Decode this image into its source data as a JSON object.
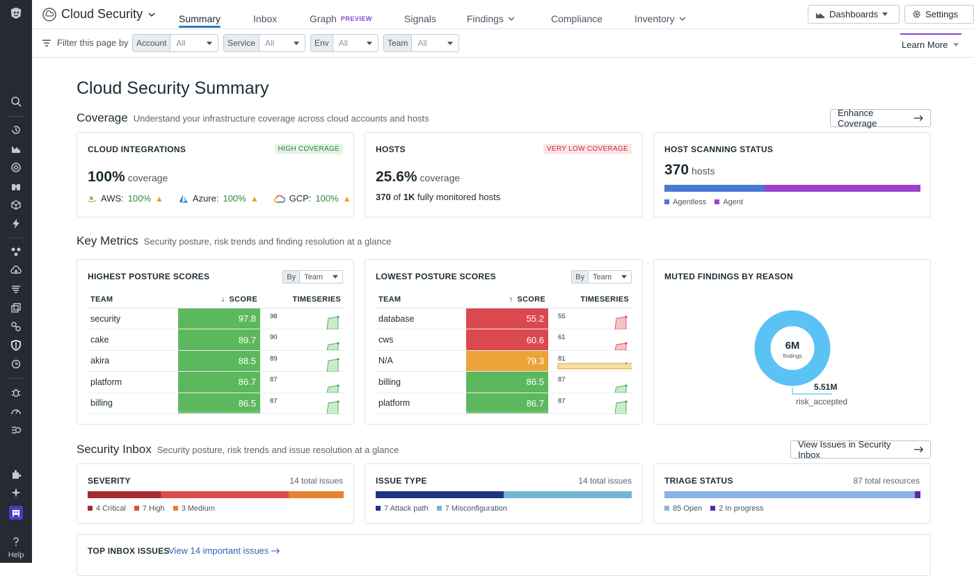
{
  "app": {
    "title": "Cloud Security"
  },
  "nav": {
    "tabs": [
      {
        "label": "Summary"
      },
      {
        "label": "Inbox"
      },
      {
        "label": "Graph",
        "badge": "PREVIEW"
      },
      {
        "label": "Signals"
      },
      {
        "label": "Findings"
      },
      {
        "label": "Compliance"
      },
      {
        "label": "Inventory"
      }
    ],
    "dashboards": "Dashboards",
    "settings": "Settings",
    "help": "Help"
  },
  "filters": {
    "label": "Filter this page by",
    "items": [
      {
        "key": "Account",
        "value": "All"
      },
      {
        "key": "Service",
        "value": "All"
      },
      {
        "key": "Env",
        "value": "All"
      },
      {
        "key": "Team",
        "value": "All"
      }
    ],
    "learn_more": "Learn More"
  },
  "page": {
    "title": "Cloud Security Summary"
  },
  "coverage": {
    "title": "Coverage",
    "subtitle": "Understand your infrastructure coverage across cloud accounts and hosts",
    "button": "Enhance Coverage",
    "integrations": {
      "title": "CLOUD INTEGRATIONS",
      "badge": "HIGH COVERAGE",
      "value": "100%",
      "unit": "coverage",
      "providers": [
        {
          "name": "AWS:",
          "pct": "100%"
        },
        {
          "name": "Azure:",
          "pct": "100%"
        },
        {
          "name": "GCP:",
          "pct": "100%"
        }
      ]
    },
    "hosts": {
      "title": "HOSTS",
      "badge": "VERY LOW COVERAGE",
      "value": "25.6%",
      "unit": "coverage",
      "count": "370",
      "of": "of",
      "total": "1K",
      "desc": "fully monitored hosts"
    },
    "scanning": {
      "title": "HOST SCANNING STATUS",
      "value": "370",
      "unit": "hosts",
      "agentless_fraction": 0.39,
      "legend": [
        "Agentless",
        "Agent"
      ],
      "colors": [
        "#4a79d0",
        "#9a40c9"
      ]
    }
  },
  "metrics": {
    "title": "Key Metrics",
    "subtitle": "Security posture, risk trends and finding resolution at a glance",
    "highest": {
      "title": "HIGHEST POSTURE SCORES",
      "by": "By",
      "group": "Team",
      "cols": [
        "TEAM",
        "SCORE",
        "TIMESERIES"
      ],
      "rows": [
        {
          "team": "security",
          "score": "97.8",
          "ts": "98"
        },
        {
          "team": "cake",
          "score": "89.7",
          "ts": "90"
        },
        {
          "team": "akira",
          "score": "88.5",
          "ts": "89"
        },
        {
          "team": "platform",
          "score": "86.7",
          "ts": "87"
        },
        {
          "team": "billing",
          "score": "86.5",
          "ts": "87"
        }
      ]
    },
    "lowest": {
      "title": "LOWEST POSTURE SCORES",
      "by": "By",
      "group": "Team",
      "cols": [
        "TEAM",
        "SCORE",
        "TIMESERIES"
      ],
      "rows": [
        {
          "team": "database",
          "score": "55.2",
          "ts": "55"
        },
        {
          "team": "cws",
          "score": "60.6",
          "ts": "61"
        },
        {
          "team": "N/A",
          "score": "79.3",
          "ts": "81"
        },
        {
          "team": "billing",
          "score": "86.5",
          "ts": "87"
        },
        {
          "team": "platform",
          "score": "86.7",
          "ts": "87"
        }
      ]
    },
    "muted": {
      "title": "MUTED FINDINGS BY REASON",
      "total": "6M",
      "total_label": "findings",
      "slice_value": "5.51M",
      "slice_label": "risk_accepted"
    }
  },
  "inbox": {
    "title": "Security Inbox",
    "subtitle": "Security posture, risk trends and issue resolution at a glance",
    "button": "View Issues in Security Inbox",
    "severity": {
      "title": "SEVERITY",
      "total": "14 total issues",
      "segments": [
        {
          "label": "4 Critical",
          "value": 4,
          "color": "#a42b2f"
        },
        {
          "label": "7 High",
          "value": 7,
          "color": "#dc4c4c"
        },
        {
          "label": "3 Medium",
          "value": 3,
          "color": "#e8822e"
        }
      ]
    },
    "issue_type": {
      "title": "ISSUE TYPE",
      "total": "14 total issues",
      "segments": [
        {
          "label": "7 Attack path",
          "value": 7,
          "color": "#1e3582"
        },
        {
          "label": "7 Misconfiguration",
          "value": 7,
          "color": "#72b5d4"
        }
      ]
    },
    "triage": {
      "title": "TRIAGE STATUS",
      "total": "87 total resources",
      "segments": [
        {
          "label": "85 Open",
          "value": 85,
          "color": "#88b2e2"
        },
        {
          "label": "2 In progress",
          "value": 2,
          "color": "#5e28a8"
        }
      ]
    },
    "top": {
      "title": "TOP INBOX ISSUES",
      "link": "View 14 important issues"
    }
  }
}
